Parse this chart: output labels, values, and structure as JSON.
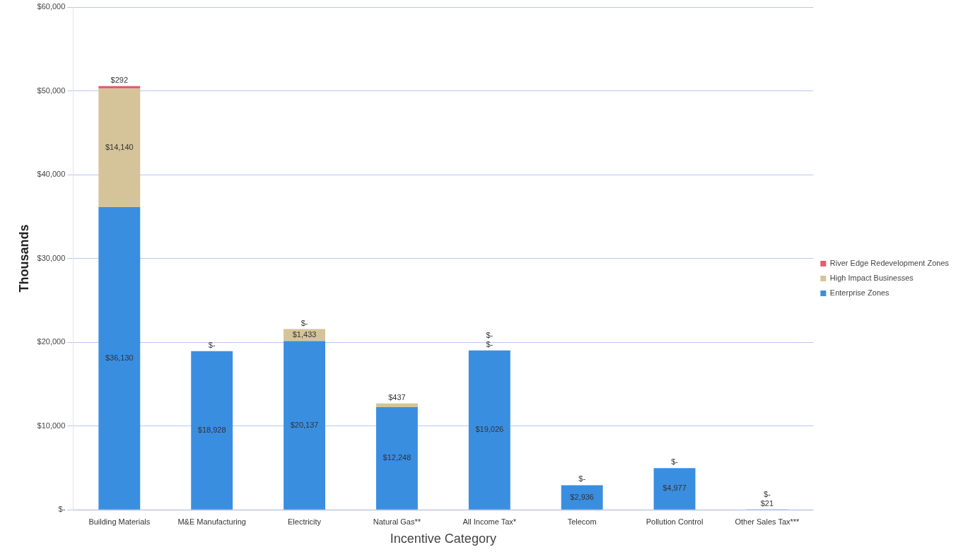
{
  "chart_data": {
    "type": "bar",
    "stacked": true,
    "xlabel": "Incentive Category",
    "ylabel": "Thousands",
    "categories": [
      "Building Materials",
      "M&E Manufacturing",
      "Electricity",
      "Natural Gas**",
      "All Income Tax*",
      "Telecom",
      "Pollution Control",
      "Other Sales Tax***"
    ],
    "series": [
      {
        "name": "Enterprise Zones",
        "color": "#3a8ee0",
        "values": [
          36130,
          18928,
          20137,
          12248,
          19026,
          2936,
          4977,
          21
        ],
        "value_labels": [
          "$36,130",
          "$18,928",
          "$20,137",
          "$12,248",
          "$19,026",
          "$2,936",
          "$4,977",
          "$21"
        ]
      },
      {
        "name": "High Impact Businesses",
        "color": "#d5c49a",
        "values": [
          14140,
          0,
          1433,
          437,
          0,
          null,
          null,
          0
        ],
        "value_labels": [
          "$14,140",
          null,
          "$1,433",
          "$437",
          "$-",
          null,
          null,
          "$-"
        ]
      },
      {
        "name": "River Edge Redevelopment Zones",
        "color": "#e06070",
        "values": [
          292,
          0,
          0,
          null,
          0,
          0,
          0,
          null
        ],
        "value_labels": [
          "$292",
          "$-",
          "$-",
          null,
          "$-",
          "$-",
          "$-",
          null
        ]
      }
    ],
    "ylim": [
      0,
      60000
    ],
    "yticks": [
      {
        "value": 0,
        "label": "$-"
      },
      {
        "value": 10000,
        "label": "$10,000"
      },
      {
        "value": 20000,
        "label": "$20,000"
      },
      {
        "value": 30000,
        "label": "$30,000"
      },
      {
        "value": 40000,
        "label": "$40,000"
      },
      {
        "value": 50000,
        "label": "$50,000"
      },
      {
        "value": 60000,
        "label": "$60,000"
      }
    ],
    "grid": "y",
    "legend": "right"
  }
}
